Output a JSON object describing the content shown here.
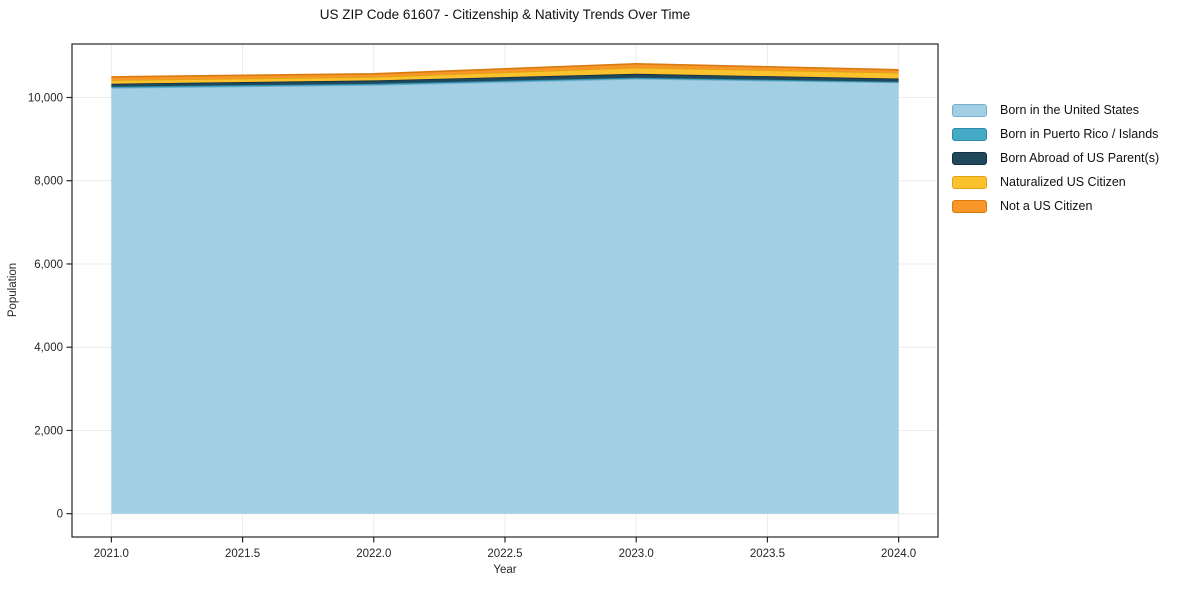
{
  "title": "US ZIP Code 61607 - Citizenship & Nativity Trends Over Time",
  "chart_data": {
    "type": "area",
    "stacked": true,
    "title": "US ZIP Code 61607 - Citizenship & Nativity Trends Over Time",
    "xlabel": "Year",
    "ylabel": "Population",
    "x": [
      2021,
      2022,
      2023,
      2024
    ],
    "series": [
      {
        "name": "Born in the United States",
        "color": "#a3cfe4",
        "edge_color": "#76aecd",
        "values": [
          10230,
          10300,
          10450,
          10360
        ]
      },
      {
        "name": "Born in Puerto Rico / Islands",
        "color": "#44aac5",
        "edge_color": "#2d8ba6",
        "values": [
          30,
          30,
          25,
          20
        ]
      },
      {
        "name": "Born Abroad of US Parent(s)",
        "color": "#20485c",
        "edge_color": "#14303f",
        "values": [
          70,
          80,
          95,
          75
        ]
      },
      {
        "name": "Naturalized US Citizen",
        "color": "#fcc22d",
        "edge_color": "#dea312",
        "values": [
          85,
          85,
          145,
          140
        ]
      },
      {
        "name": "Not a US Citizen",
        "color": "#f7972a",
        "edge_color": "#d97a0e",
        "values": [
          80,
          75,
          95,
          70
        ]
      }
    ],
    "totals": [
      10495,
      10570,
      10810,
      10665
    ],
    "xticks": [
      2021.0,
      2021.5,
      2022.0,
      2022.5,
      2023.0,
      2023.5,
      2024.0
    ],
    "xtick_labels": [
      "2021.0",
      "2021.5",
      "2022.0",
      "2022.5",
      "2023.0",
      "2023.5",
      "2024.0"
    ],
    "yticks": [
      0,
      2000,
      4000,
      6000,
      8000,
      10000
    ],
    "ytick_labels": [
      "0",
      "2,000",
      "4,000",
      "6,000",
      "8,000",
      "10,000"
    ],
    "axis_xrange": [
      2020.85,
      2024.15
    ],
    "axis_yrange": [
      -560,
      11285
    ],
    "grid": true,
    "legend_position": "right",
    "background": "#ffffff",
    "grid_color": "#ececec",
    "spine_color": "#262626",
    "text_color": "#1a1a1a"
  }
}
